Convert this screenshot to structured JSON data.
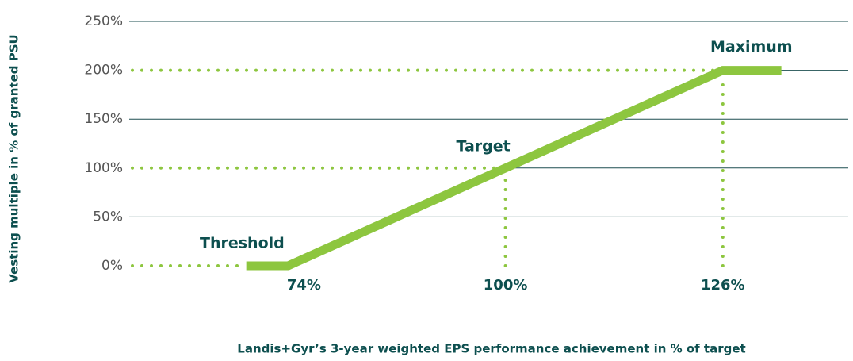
{
  "chart_data": {
    "type": "line",
    "x": [
      69,
      74,
      100,
      126,
      133
    ],
    "series": [
      {
        "name": "Vesting multiple",
        "color": "#8dc63f",
        "values": [
          0,
          0,
          100,
          200,
          200
        ]
      }
    ],
    "xlim": [
      55,
      141
    ],
    "xticks": [
      {
        "value": 74,
        "label": "74%"
      },
      {
        "value": 100,
        "label": "100%"
      },
      {
        "value": 126,
        "label": "126%"
      }
    ],
    "ylim": [
      0,
      250
    ],
    "yticks": [
      {
        "value": 0,
        "label": "0%"
      },
      {
        "value": 50,
        "label": "50%"
      },
      {
        "value": 100,
        "label": "100%"
      },
      {
        "value": 150,
        "label": "150%"
      },
      {
        "value": 200,
        "label": "200%"
      },
      {
        "value": 250,
        "label": "250%"
      }
    ],
    "annotations": [
      "Threshold",
      "Target",
      "Maximum"
    ],
    "xlabel": "Landis+Gyr’s 3-year weighted EPS performance achievement in % of target",
    "ylabel": "Vesting multiple in % of granted PSU",
    "grid": true
  }
}
